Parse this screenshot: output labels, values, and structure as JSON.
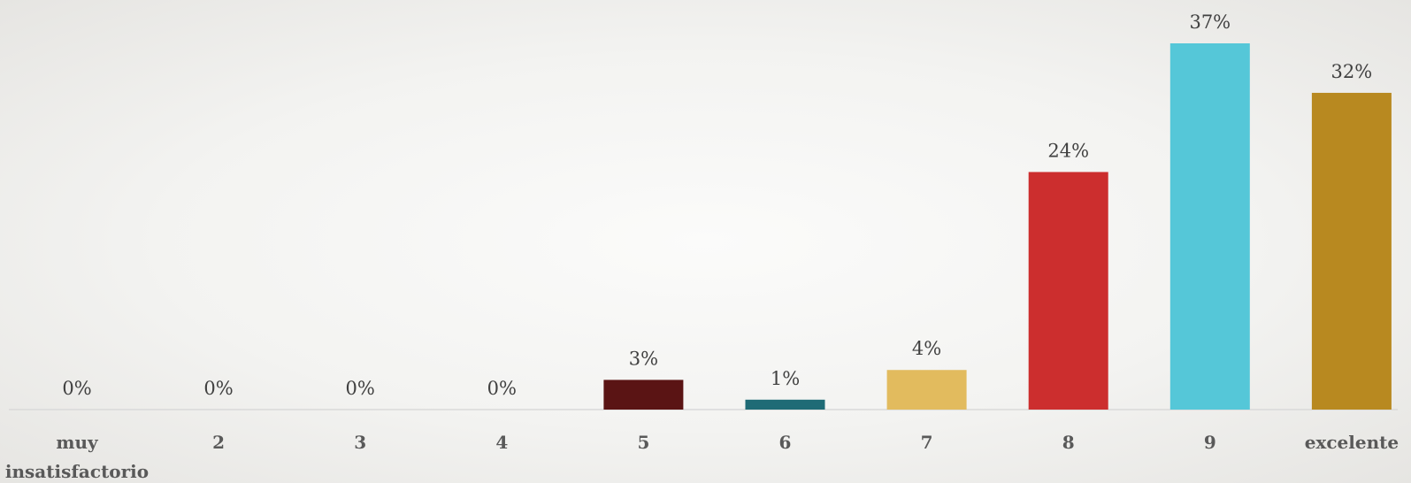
{
  "chart_data": {
    "type": "bar",
    "title": "",
    "xlabel": "",
    "ylabel": "",
    "categories": [
      [
        "muy",
        "insatisfactorio"
      ],
      [
        "2"
      ],
      [
        "3"
      ],
      [
        "4"
      ],
      [
        "5"
      ],
      [
        "6"
      ],
      [
        "7"
      ],
      [
        "8"
      ],
      [
        "9"
      ],
      [
        "excelente"
      ]
    ],
    "values": [
      0,
      0,
      0,
      0,
      3,
      1,
      4,
      24,
      37,
      32
    ],
    "value_labels": [
      "0%",
      "0%",
      "0%",
      "0%",
      "3%",
      "1%",
      "4%",
      "24%",
      "37%",
      "32%"
    ],
    "unit": "%",
    "colors": [
      "#5a1414",
      "#5a1414",
      "#5a1414",
      "#5a1414",
      "#5a1414",
      "#1f6b76",
      "#e2bb5e",
      "#cc2e2e",
      "#55c7d8",
      "#b88920"
    ],
    "grid": false,
    "legend": "none"
  }
}
